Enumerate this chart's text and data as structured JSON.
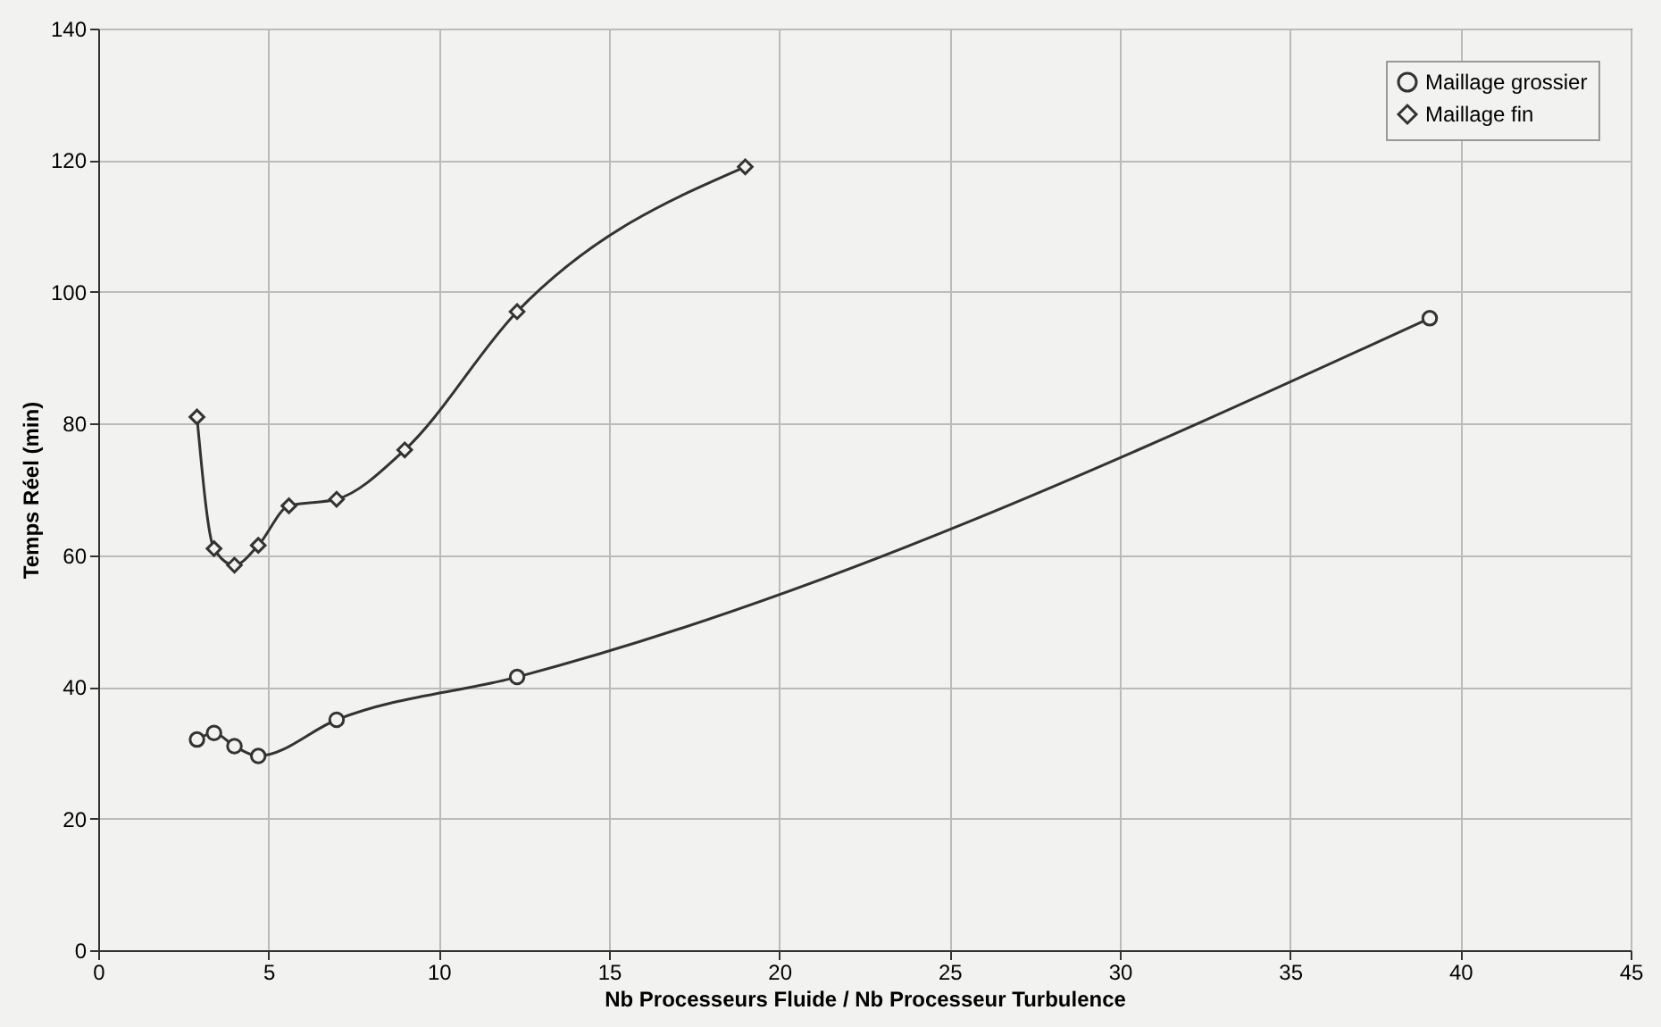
{
  "chart_data": {
    "type": "line",
    "xlabel": "Nb Processeurs Fluide / Nb Processeur Turbulence",
    "ylabel": "Temps Réel (min)",
    "xlim": [
      0,
      45
    ],
    "xticks": [
      0,
      5,
      10,
      15,
      20,
      25,
      30,
      35,
      40,
      45
    ],
    "ylim": [
      0,
      140
    ],
    "yticks": [
      0,
      20,
      40,
      60,
      80,
      100,
      120,
      140
    ],
    "grid": true,
    "legend": "top right",
    "series": [
      {
        "name": "Maillage grossier",
        "color": "#333333",
        "marker": "circle",
        "x": [
          2.9,
          3.4,
          4.0,
          4.7,
          7.0,
          12.3,
          39.1
        ],
        "values": [
          32,
          33,
          31,
          29.5,
          35,
          41.5,
          96
        ]
      },
      {
        "name": "Maillage fin",
        "color": "#333333",
        "marker": "diamond",
        "x": [
          2.9,
          3.4,
          4.0,
          4.7,
          5.6,
          7.0,
          9.0,
          12.3,
          19.0
        ],
        "values": [
          81,
          61,
          58.5,
          61.5,
          67.5,
          68.5,
          76,
          97,
          119
        ]
      }
    ]
  }
}
